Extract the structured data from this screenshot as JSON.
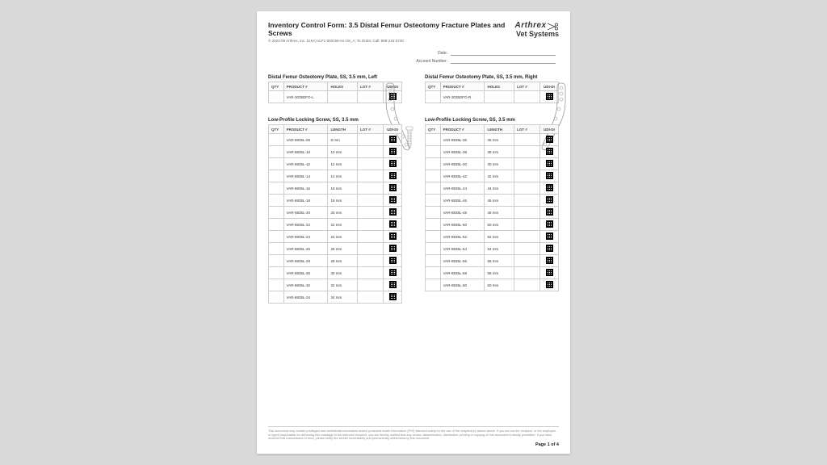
{
  "header": {
    "title": "Inventory Control Form: 3.5 Distal Femur Osteotomy Fracture Plates and Screws",
    "copyright": "© 2023-09 Arthrex, Inc. (USA) vLF1-000156-en-US_A; To Order, Call: 888-215-3740",
    "logo_top": "Arthrex",
    "logo_bot": "Vet Systems",
    "date_label": "Date:",
    "acct_label": "Account Number:"
  },
  "cols": {
    "qty": "QTY",
    "product": "PRODUCT #",
    "holes": "HOLES",
    "length": "LENGTH",
    "lot": "LOT #",
    "udi": "UDI-DI"
  },
  "plate_left": {
    "title": "Distal Femur Osteotomy Plate, SS, 3.5 mm, Left",
    "product": "VAR-3035DFO-L"
  },
  "plate_right": {
    "title": "Distal Femur Osteotomy Plate, SS, 3.5 mm, Right",
    "product": "VAR-3035DFO-R"
  },
  "screw_left": {
    "title": "Low-Profile Locking Screw, SS, 3.5 mm",
    "rows": [
      {
        "p": "VAR-8835L-08",
        "l": "8 mm"
      },
      {
        "p": "VAR-8835L-10",
        "l": "10 mm"
      },
      {
        "p": "VAR-8835L-12",
        "l": "12 mm"
      },
      {
        "p": "VAR-8835L-14",
        "l": "14 mm"
      },
      {
        "p": "VAR-8835L-16",
        "l": "16 mm"
      },
      {
        "p": "VAR-8835L-18",
        "l": "18 mm"
      },
      {
        "p": "VAR-8835L-20",
        "l": "20 mm"
      },
      {
        "p": "VAR-8835L-22",
        "l": "22 mm"
      },
      {
        "p": "VAR-8835L-24",
        "l": "24 mm"
      },
      {
        "p": "VAR-8835L-26",
        "l": "26 mm"
      },
      {
        "p": "VAR-8835L-28",
        "l": "28 mm"
      },
      {
        "p": "VAR-8835L-30",
        "l": "30 mm"
      },
      {
        "p": "VAR-8835L-32",
        "l": "32 mm"
      },
      {
        "p": "VAR-8835L-34",
        "l": "34 mm"
      }
    ]
  },
  "screw_right": {
    "title": "Low-Profile Locking Screw, SS, 3.5 mm",
    "rows": [
      {
        "p": "VAR-8835L-36",
        "l": "36 mm"
      },
      {
        "p": "VAR-8835L-38",
        "l": "38 mm"
      },
      {
        "p": "VAR-8835L-40",
        "l": "40 mm"
      },
      {
        "p": "VAR-8835L-42",
        "l": "42 mm"
      },
      {
        "p": "VAR-8835L-44",
        "l": "44 mm"
      },
      {
        "p": "VAR-8835L-46",
        "l": "46 mm"
      },
      {
        "p": "VAR-8835L-48",
        "l": "48 mm"
      },
      {
        "p": "VAR-8835L-50",
        "l": "50 mm"
      },
      {
        "p": "VAR-8835L-52",
        "l": "52 mm"
      },
      {
        "p": "VAR-8835L-54",
        "l": "54 mm"
      },
      {
        "p": "VAR-8835L-56",
        "l": "56 mm"
      },
      {
        "p": "VAR-8835L-58",
        "l": "58 mm"
      },
      {
        "p": "VAR-8835L-60",
        "l": "60 mm"
      }
    ]
  },
  "disclaimer": "This document may contain privileged and confidential information and/or protected health information (PHI) intended solely for the use of the recipient(s) named above. If you are not the recipient, or the employee or agent responsible for delivering this message to the intended recipient, you are hereby notified that any review, dissemination, distribution, printing or copying of this document is strictly prohibited. If you have received this transmission in error, please notify the sender immediately and permanently delete/destroy this document.",
  "pagenum": "Page 1 of 4",
  "style": {
    "page_bg": "#ffffff",
    "outer_bg": "#d9d9d9",
    "border": "#cccccc",
    "text": "#333333"
  }
}
